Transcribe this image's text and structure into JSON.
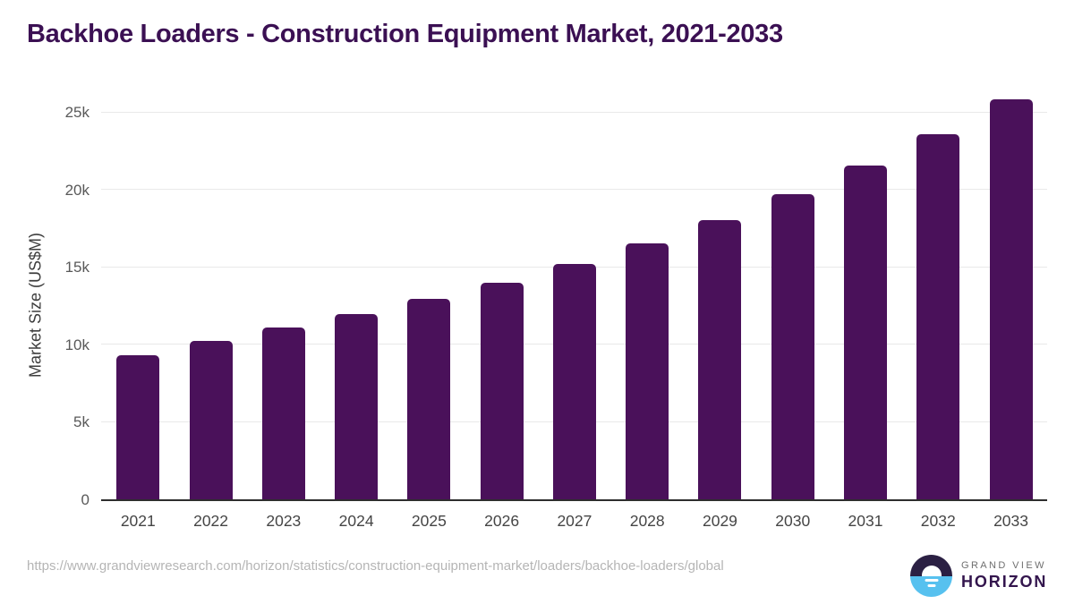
{
  "chart_data": {
    "type": "bar",
    "title": "Backhoe Loaders - Construction Equipment Market, 2021-2033",
    "categories": [
      "2021",
      "2022",
      "2023",
      "2024",
      "2025",
      "2026",
      "2027",
      "2028",
      "2029",
      "2030",
      "2031",
      "2032",
      "2033"
    ],
    "values": [
      9300,
      10250,
      11100,
      11950,
      12950,
      14000,
      15200,
      16550,
      18050,
      19700,
      21550,
      23600,
      25850
    ],
    "xlabel": "",
    "ylabel": "Market Size (US$M)",
    "ylim": [
      0,
      26000
    ],
    "yticks": [
      {
        "value": 0,
        "label": "0"
      },
      {
        "value": 5000,
        "label": "5k"
      },
      {
        "value": 10000,
        "label": "10k"
      },
      {
        "value": 15000,
        "label": "15k"
      },
      {
        "value": 20000,
        "label": "20k"
      },
      {
        "value": 25000,
        "label": "25k"
      }
    ],
    "grid": true,
    "legend": false,
    "bar_color": "#4a115a"
  },
  "footer": {
    "source_url": "https://www.grandviewresearch.com/horizon/statistics/construction-equipment-market/loaders/backhoe-loaders/global",
    "logo": {
      "line1": "GRAND VIEW",
      "line2": "HORIZON"
    }
  },
  "colors": {
    "title": "#3b1053",
    "bar": "#4a115a",
    "gridline": "#e9e9e9",
    "axis_line": "#2e2e2e",
    "y_tick_label": "#595959",
    "x_tick_label": "#454545",
    "y_axis_label": "#3d3d3d",
    "source_url": "#b5b5b5",
    "logo_dark": "#2b2043",
    "logo_blue": "#57c1ef",
    "logo_text_top": "#6f6f6f",
    "logo_text_bottom": "#33154d"
  }
}
